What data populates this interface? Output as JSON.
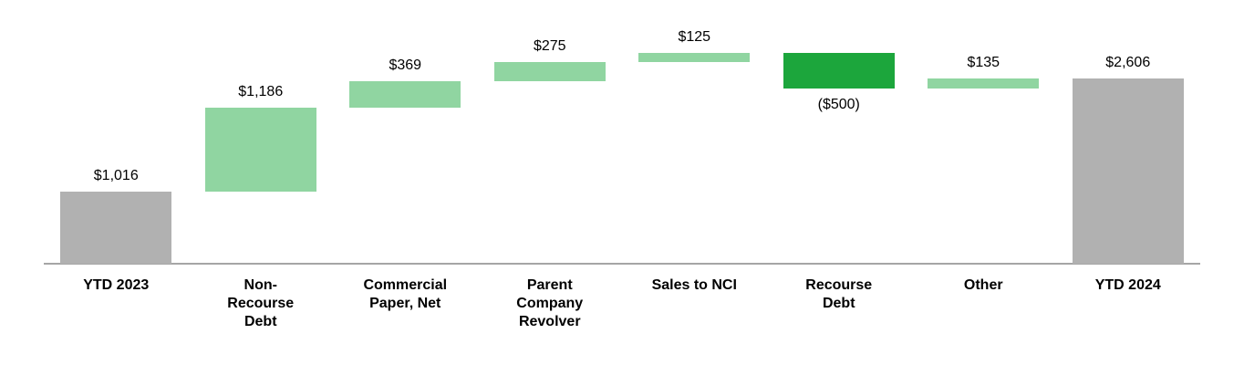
{
  "chart_data": {
    "type": "bar",
    "subtype": "waterfall",
    "categories": [
      "YTD 2023",
      "Non-Recourse Debt",
      "Commercial Paper, Net",
      "Parent Company Revolver",
      "Sales to NCI",
      "Recourse Debt",
      "Other",
      "YTD 2024"
    ],
    "category_lines": [
      [
        "YTD 2023"
      ],
      [
        "Non-",
        "Recourse",
        "Debt"
      ],
      [
        "Commercial",
        "Paper, Net"
      ],
      [
        "Parent",
        "Company",
        "Revolver"
      ],
      [
        "Sales to NCI"
      ],
      [
        "Recourse",
        "Debt"
      ],
      [
        "Other"
      ],
      [
        "YTD 2024"
      ]
    ],
    "bars": [
      {
        "label": "YTD 2023",
        "value": 1016,
        "display": "$1,016",
        "kind": "total",
        "start": 0,
        "end": 1016,
        "label_position": "above"
      },
      {
        "label": "Non-Recourse Debt",
        "value": 1186,
        "display": "$1,186",
        "kind": "increase",
        "start": 1016,
        "end": 2202,
        "label_position": "above"
      },
      {
        "label": "Commercial Paper, Net",
        "value": 369,
        "display": "$369",
        "kind": "increase",
        "start": 2202,
        "end": 2571,
        "label_position": "above"
      },
      {
        "label": "Parent Company Revolver",
        "value": 275,
        "display": "$275",
        "kind": "increase",
        "start": 2571,
        "end": 2846,
        "label_position": "above"
      },
      {
        "label": "Sales to NCI",
        "value": 125,
        "display": "$125",
        "kind": "increase",
        "start": 2846,
        "end": 2971,
        "label_position": "above"
      },
      {
        "label": "Recourse Debt",
        "value": -500,
        "display": "($500)",
        "kind": "decrease",
        "start": 2971,
        "end": 2471,
        "label_position": "below"
      },
      {
        "label": "Other",
        "value": 135,
        "display": "$135",
        "kind": "increase",
        "start": 2471,
        "end": 2606,
        "label_position": "above"
      },
      {
        "label": "YTD 2024",
        "value": 2606,
        "display": "$2,606",
        "kind": "total",
        "start": 0,
        "end": 2606,
        "label_position": "above"
      }
    ],
    "colors": {
      "total": "#b1b1b1",
      "increase": "#90d5a1",
      "decrease": "#1ca63c",
      "axis": "#a6a6a6",
      "text": "#000000"
    },
    "axis": {
      "ylim": [
        0,
        3000
      ],
      "grid": false,
      "legend": false,
      "xlabel": "",
      "ylabel": ""
    }
  }
}
